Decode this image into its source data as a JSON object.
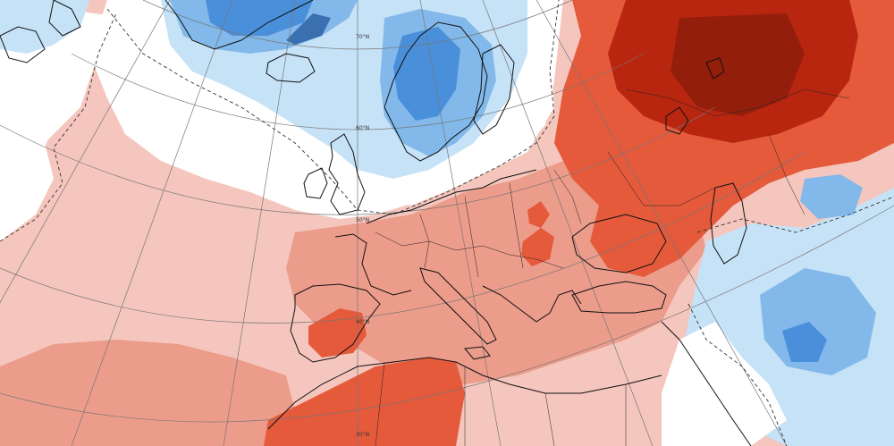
{
  "map": {
    "type": "temperature-anomaly",
    "colors": {
      "strong_cold": "#4a8fd9",
      "cold": "#82b8ea",
      "mild_cold": "#c6e2f7",
      "neutral": "#ffffff",
      "mild_warm": "#f5c6bd",
      "warm": "#ec9c8b",
      "hot": "#e45a3b",
      "very_hot": "#b82610",
      "extreme": "#931e0c",
      "coastline": "#111111",
      "graticule": "#777777",
      "contour": "#333333"
    },
    "latitude_labels": [
      "70°N",
      "60°N",
      "50°N",
      "40°N",
      "30°N"
    ]
  }
}
